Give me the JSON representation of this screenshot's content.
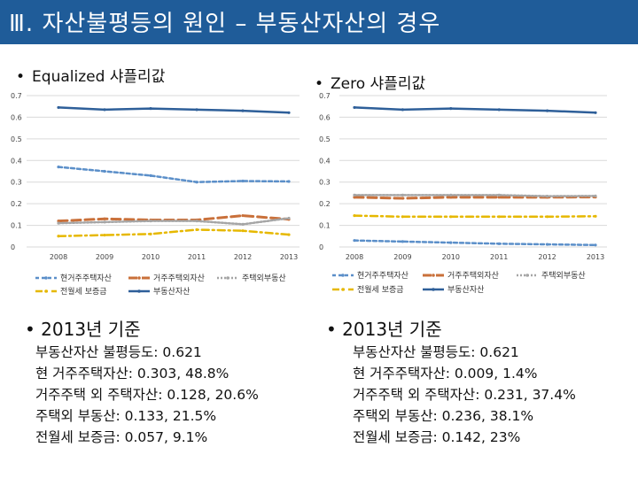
{
  "title": "Ⅲ. 자산불평등의 원인 – 부동산자산의 경우",
  "colors": {
    "title_bg": "#1f5c99",
    "title_fg": "#ffffff"
  },
  "left": {
    "subtitle": "Equalized 샤플리값",
    "bullet": "2013년 기준",
    "lines": [
      "부동산자산 불평등도: 0.621",
      "현 거주주택자산: 0.303, 48.8%",
      "거주주택 외 주택자산: 0.128, 20.6%",
      "주택외 부동산: 0.133, 21.5%",
      "전월세 보증금: 0.057, 9.1%"
    ]
  },
  "right": {
    "subtitle": "Zero 샤플리값",
    "bullet": "2013년 기준",
    "lines": [
      "부동산자산 불평등도: 0.621",
      "현 거주주택자산: 0.009, 1.4%",
      "거주주택 외 주택자산: 0.231, 37.4%",
      "주택외 부동산: 0.236, 38.1%",
      "전월세 보증금: 0.142, 23%"
    ]
  },
  "chart_data": [
    {
      "type": "line",
      "title": "Equalized 샤플리값",
      "x": [
        "2008",
        "2009",
        "2010",
        "2011",
        "2012",
        "2013"
      ],
      "ylim": [
        0,
        0.7
      ],
      "yticks": [
        "0",
        "0.1",
        "0.2",
        "0.3",
        "0.4",
        "0.5",
        "0.6",
        "0.7"
      ],
      "grid": true,
      "legend_position": "bottom",
      "series": [
        {
          "name": "현거주주택자산",
          "color": "#5b8fc9",
          "dash": "4,3",
          "width": 2.5,
          "values": [
            0.37,
            0.35,
            0.33,
            0.3,
            0.305,
            0.303
          ]
        },
        {
          "name": "거주주택외자산",
          "color": "#c9703a",
          "dash": "10,5",
          "width": 3,
          "values": [
            0.12,
            0.13,
            0.125,
            0.125,
            0.145,
            0.128
          ]
        },
        {
          "name": "주택외부동산",
          "color": "#a5a5a5",
          "dash": "2,2",
          "width": 2.5,
          "values": [
            0.11,
            0.115,
            0.12,
            0.12,
            0.105,
            0.133
          ]
        },
        {
          "name": "전월세 보증금",
          "color": "#e6b800",
          "dash": "8,4,2,4",
          "width": 2.5,
          "values": [
            0.05,
            0.055,
            0.06,
            0.08,
            0.075,
            0.057
          ]
        },
        {
          "name": "부동산자산",
          "color": "#2e5f99",
          "dash": "",
          "width": 2.5,
          "values": [
            0.645,
            0.635,
            0.64,
            0.635,
            0.63,
            0.621
          ]
        }
      ]
    },
    {
      "type": "line",
      "title": "Zero 샤플리값",
      "x": [
        "2008",
        "2009",
        "2010",
        "2011",
        "2012",
        "2013"
      ],
      "ylim": [
        0,
        0.7
      ],
      "yticks": [
        "0",
        "0.1",
        "0.2",
        "0.3",
        "0.4",
        "0.5",
        "0.6",
        "0.7"
      ],
      "grid": true,
      "legend_position": "bottom",
      "series": [
        {
          "name": "현거주주택자산",
          "color": "#5b8fc9",
          "dash": "4,3",
          "width": 2.5,
          "values": [
            0.03,
            0.025,
            0.02,
            0.015,
            0.012,
            0.009
          ]
        },
        {
          "name": "거주주택외자산",
          "color": "#c9703a",
          "dash": "10,5",
          "width": 3,
          "values": [
            0.23,
            0.225,
            0.23,
            0.23,
            0.23,
            0.231
          ]
        },
        {
          "name": "주택외부동산",
          "color": "#a5a5a5",
          "dash": "2,2",
          "width": 2.5,
          "values": [
            0.24,
            0.24,
            0.24,
            0.24,
            0.235,
            0.236
          ]
        },
        {
          "name": "전월세 보증금",
          "color": "#e6b800",
          "dash": "8,4,2,4",
          "width": 2.5,
          "values": [
            0.145,
            0.14,
            0.14,
            0.14,
            0.14,
            0.142
          ]
        },
        {
          "name": "부동산자산",
          "color": "#2e5f99",
          "dash": "",
          "width": 2.5,
          "values": [
            0.645,
            0.635,
            0.64,
            0.635,
            0.63,
            0.621
          ]
        }
      ]
    }
  ]
}
